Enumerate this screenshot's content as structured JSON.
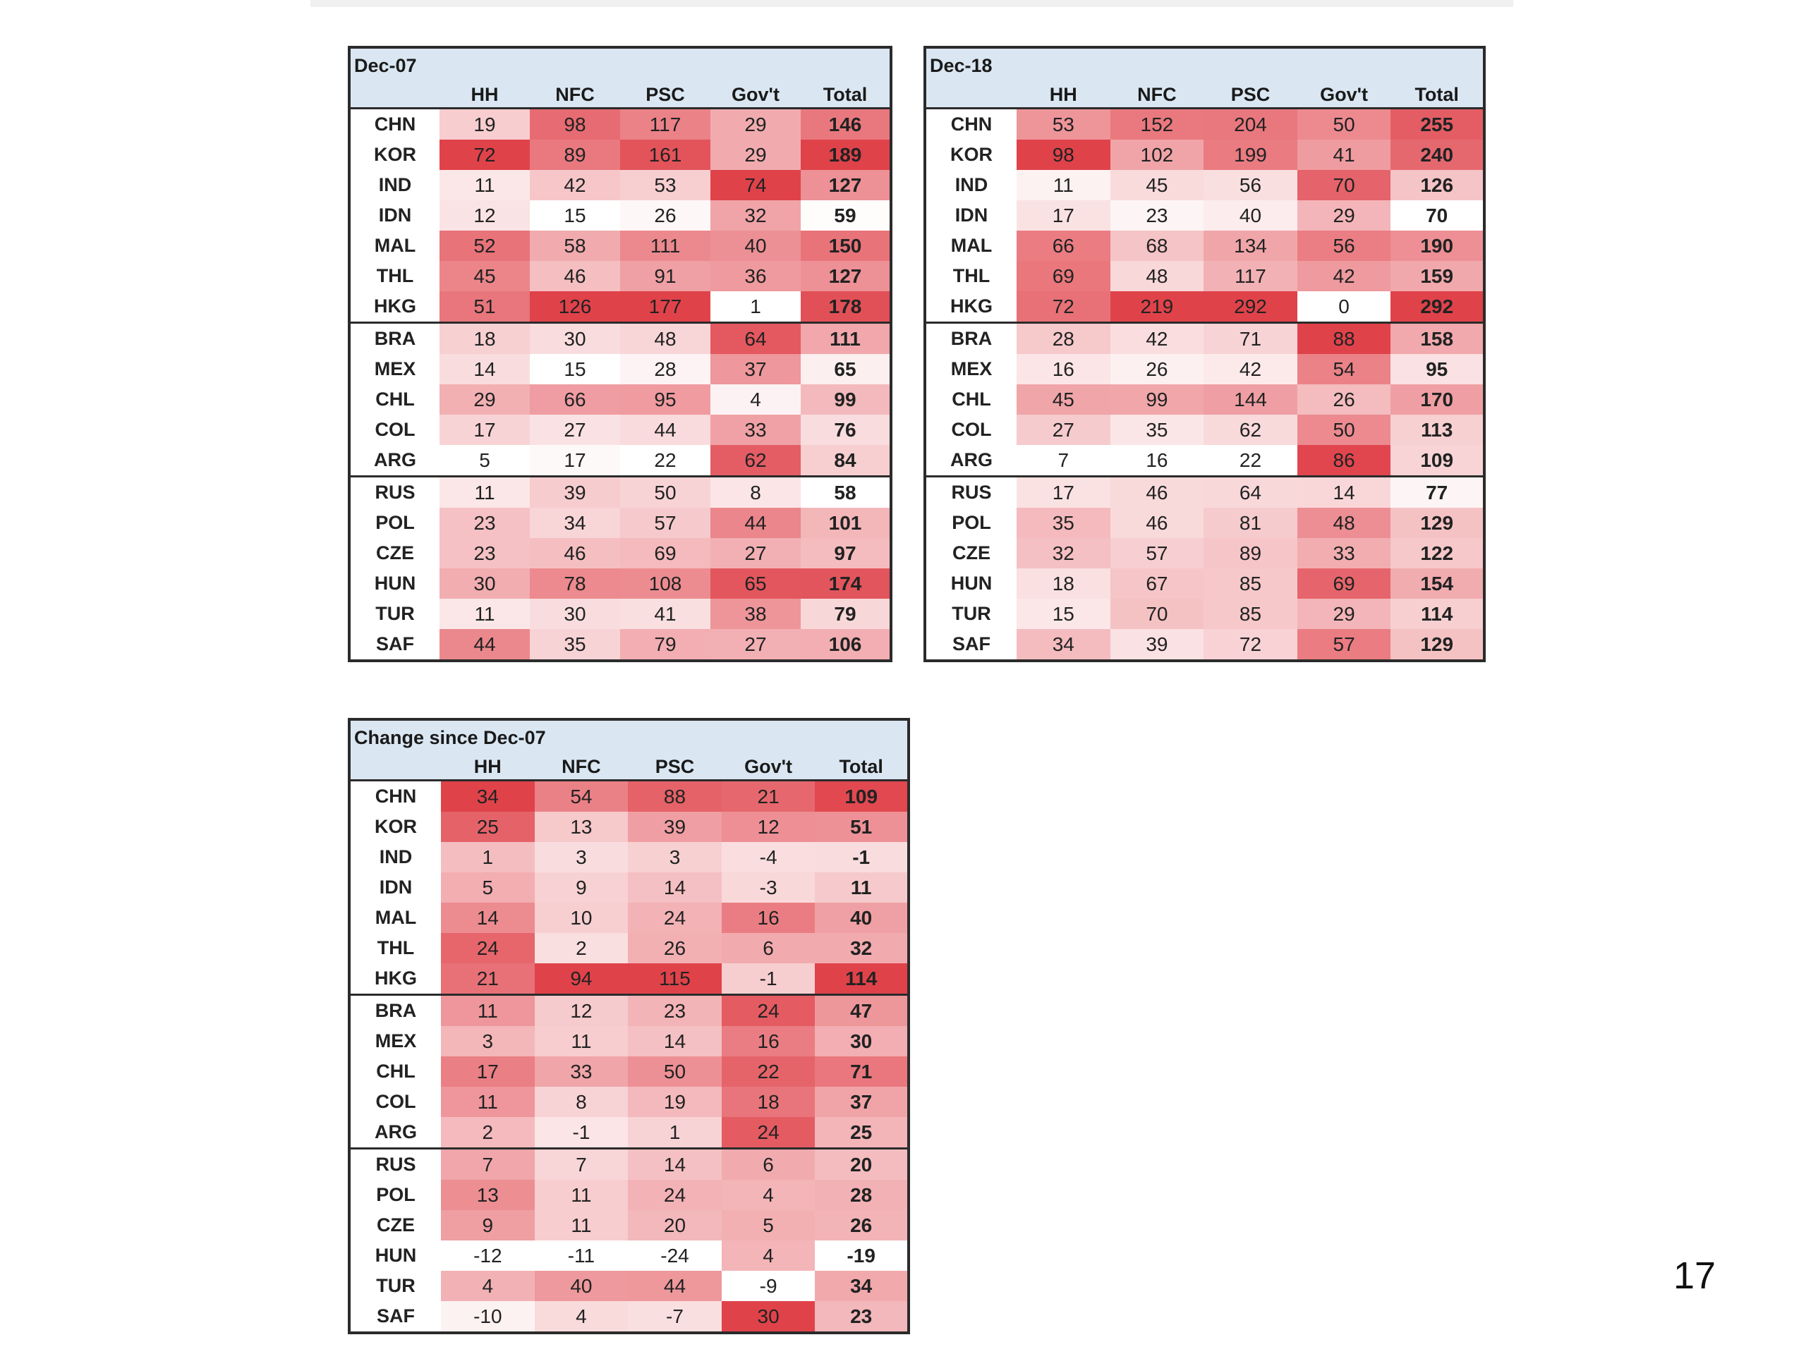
{
  "page_number": "17",
  "palette": {
    "low": "#ffffff",
    "high": "#e0424a",
    "header_bg": "#dae7f3",
    "border": "#2b2b2b"
  },
  "chart_data": [
    {
      "type": "heatmap",
      "title": "Dec-07",
      "columns": [
        "HH",
        "NFC",
        "PSC",
        "Gov't",
        "Total"
      ],
      "rows": [
        "CHN",
        "KOR",
        "IND",
        "IDN",
        "MAL",
        "THL",
        "HKG",
        "BRA",
        "MEX",
        "CHL",
        "COL",
        "ARG",
        "RUS",
        "POL",
        "CZE",
        "HUN",
        "TUR",
        "SAF"
      ],
      "groups": [
        7,
        5,
        6
      ],
      "values": [
        [
          19,
          98,
          117,
          29,
          146
        ],
        [
          72,
          89,
          161,
          29,
          189
        ],
        [
          11,
          42,
          53,
          74,
          127
        ],
        [
          12,
          15,
          26,
          32,
          59
        ],
        [
          52,
          58,
          111,
          40,
          150
        ],
        [
          45,
          46,
          91,
          36,
          127
        ],
        [
          51,
          126,
          177,
          1,
          178
        ],
        [
          18,
          30,
          48,
          64,
          111
        ],
        [
          14,
          15,
          28,
          37,
          65
        ],
        [
          29,
          66,
          95,
          4,
          99
        ],
        [
          17,
          27,
          44,
          33,
          76
        ],
        [
          5,
          17,
          22,
          62,
          84
        ],
        [
          11,
          39,
          50,
          8,
          58
        ],
        [
          23,
          34,
          57,
          44,
          101
        ],
        [
          23,
          46,
          69,
          27,
          97
        ],
        [
          30,
          78,
          108,
          65,
          174
        ],
        [
          11,
          30,
          41,
          38,
          79
        ],
        [
          44,
          35,
          79,
          27,
          106
        ]
      ]
    },
    {
      "type": "heatmap",
      "title": "Dec-18",
      "columns": [
        "HH",
        "NFC",
        "PSC",
        "Gov't",
        "Total"
      ],
      "rows": [
        "CHN",
        "KOR",
        "IND",
        "IDN",
        "MAL",
        "THL",
        "HKG",
        "BRA",
        "MEX",
        "CHL",
        "COL",
        "ARG",
        "RUS",
        "POL",
        "CZE",
        "HUN",
        "TUR",
        "SAF"
      ],
      "groups": [
        7,
        5,
        6
      ],
      "values": [
        [
          53,
          152,
          204,
          50,
          255
        ],
        [
          98,
          102,
          199,
          41,
          240
        ],
        [
          11,
          45,
          56,
          70,
          126
        ],
        [
          17,
          23,
          40,
          29,
          70
        ],
        [
          66,
          68,
          134,
          56,
          190
        ],
        [
          69,
          48,
          117,
          42,
          159
        ],
        [
          72,
          219,
          292,
          0,
          292
        ],
        [
          28,
          42,
          71,
          88,
          158
        ],
        [
          16,
          26,
          42,
          54,
          95
        ],
        [
          45,
          99,
          144,
          26,
          170
        ],
        [
          27,
          35,
          62,
          50,
          113
        ],
        [
          7,
          16,
          22,
          86,
          109
        ],
        [
          17,
          46,
          64,
          14,
          77
        ],
        [
          35,
          46,
          81,
          48,
          129
        ],
        [
          32,
          57,
          89,
          33,
          122
        ],
        [
          18,
          67,
          85,
          69,
          154
        ],
        [
          15,
          70,
          85,
          29,
          114
        ],
        [
          34,
          39,
          72,
          57,
          129
        ]
      ]
    },
    {
      "type": "heatmap",
      "title": "Change since Dec-07",
      "columns": [
        "HH",
        "NFC",
        "PSC",
        "Gov't",
        "Total"
      ],
      "rows": [
        "CHN",
        "KOR",
        "IND",
        "IDN",
        "MAL",
        "THL",
        "HKG",
        "BRA",
        "MEX",
        "CHL",
        "COL",
        "ARG",
        "RUS",
        "POL",
        "CZE",
        "HUN",
        "TUR",
        "SAF"
      ],
      "groups": [
        7,
        5,
        6
      ],
      "values": [
        [
          34,
          54,
          88,
          21,
          109
        ],
        [
          25,
          13,
          39,
          12,
          51
        ],
        [
          1,
          3,
          3,
          -4,
          -1
        ],
        [
          5,
          9,
          14,
          -3,
          11
        ],
        [
          14,
          10,
          24,
          16,
          40
        ],
        [
          24,
          2,
          26,
          6,
          32
        ],
        [
          21,
          94,
          115,
          -1,
          114
        ],
        [
          11,
          12,
          23,
          24,
          47
        ],
        [
          3,
          11,
          14,
          16,
          30
        ],
        [
          17,
          33,
          50,
          22,
          71
        ],
        [
          11,
          8,
          19,
          18,
          37
        ],
        [
          2,
          -1,
          1,
          24,
          25
        ],
        [
          7,
          7,
          14,
          6,
          20
        ],
        [
          13,
          11,
          24,
          4,
          28
        ],
        [
          9,
          11,
          20,
          5,
          26
        ],
        [
          -12,
          -11,
          -24,
          4,
          -19
        ],
        [
          4,
          40,
          44,
          -9,
          34
        ],
        [
          -10,
          4,
          -7,
          30,
          23
        ]
      ]
    }
  ]
}
